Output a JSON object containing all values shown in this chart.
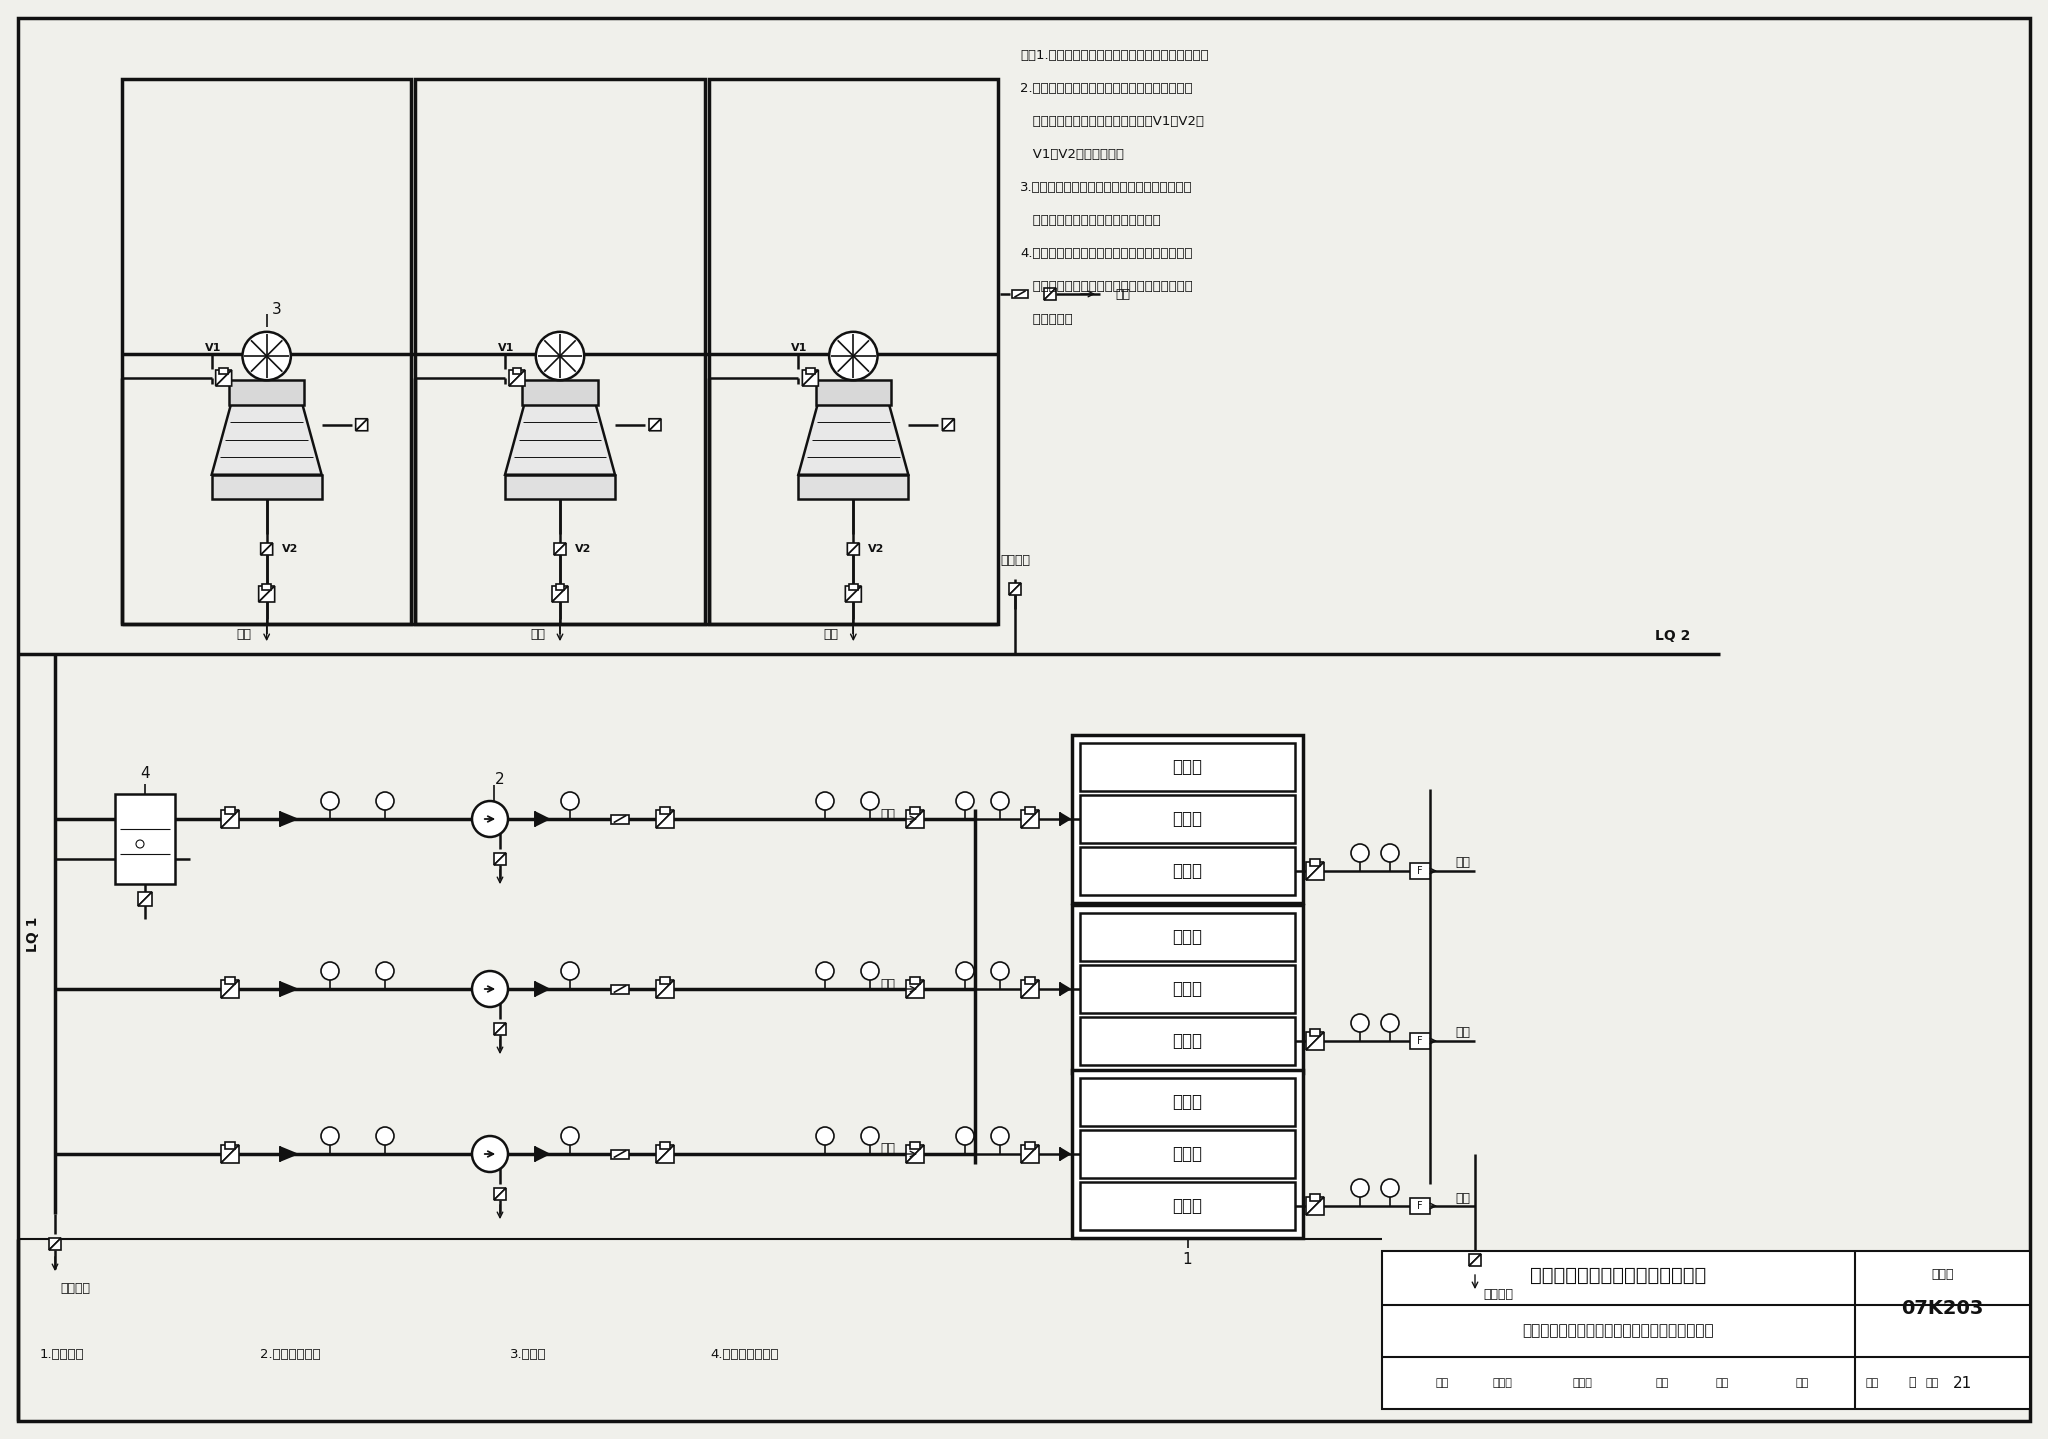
{
  "title_main": "常规空调冷却水系统原理图（六）",
  "title_sub": "吸收式制冷、多台布置、冷却塔吸收器共用集管",
  "figure_num_label": "图集号",
  "figure_num": "07K203",
  "page_label": "页",
  "page_num": "21",
  "notes": [
    "注：1.水泵前置适合于冷却塔安装位置较低的情况。",
    "2.所采用的冷却塔对进水分布水压无要求且各塔",
    "   风机为集中控制时，可取消电动阀V1、V2。",
    "   V1、V2应配对设置。",
    "3.所有开关型电动阀均与相应的制冷设备联锁，",
    "   所有电动阀均应具有手动关断功能。",
    "4.本图所示冬季进水阀位置仅为示意，具体设置",
    "   位置应保证冷却水系统冬季不使用时，室外部",
    "   分能泄空。"
  ],
  "legend_items": [
    "1.冷水机组",
    "2.冷却水循环泵",
    "3.冷却塔",
    "4.自动水处理装置"
  ],
  "bg_color": "#f0f0eb",
  "line_color": "#111111",
  "lq1_label": "LQ 1",
  "lq2_label": "LQ 2",
  "chiller_components": [
    "冷凝器",
    "蒸发器",
    "吸收器"
  ],
  "v1_label": "V1",
  "v2_label": "V2"
}
